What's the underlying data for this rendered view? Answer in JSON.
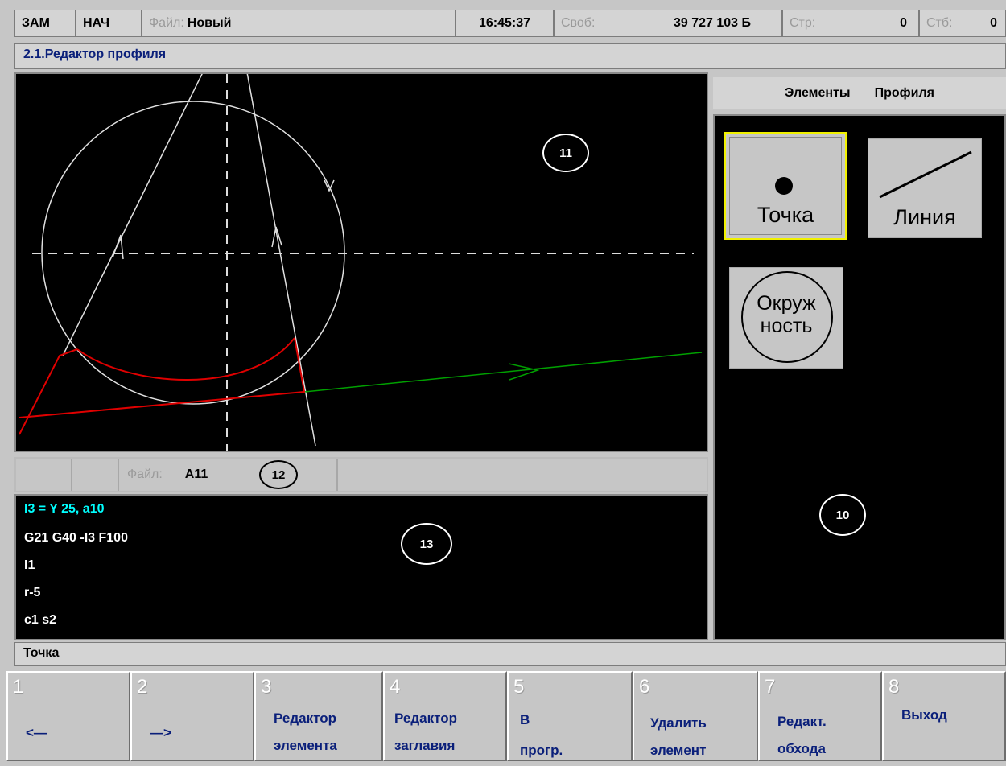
{
  "status_bar": {
    "mode1": "ЗАМ",
    "mode2": "НАЧ",
    "file_label": "Файл:",
    "file_name": "Новый",
    "time": "16:45:37",
    "free_label": "Своб:",
    "free_value": "39 727 103 Б",
    "row_label": "Стр:",
    "row_value": "0",
    "col_label": "Стб:",
    "col_value": "0"
  },
  "window_title": "2.1.Редактор профиля",
  "elements_panel": {
    "header_word1": "Элементы",
    "header_word2": "Профиля",
    "tiles": {
      "point": "Точка",
      "line": "Линия",
      "circle_line1": "Окруж",
      "circle_line2": "ность"
    },
    "callout": "10"
  },
  "graph_callout": "11",
  "file_bar": {
    "label": "Файл:",
    "name": "A11",
    "callout": "12"
  },
  "code": {
    "lines": [
      "I3 = Y 25, a10",
      "G21 G40 -I3 F100",
      "I1",
      "r-5",
      "c1 s2"
    ],
    "callout": "13",
    "highlight_color": "#00ffff"
  },
  "status_line": "Точка",
  "fkeys": [
    {
      "num": "1",
      "line1": "<—",
      "line2": ""
    },
    {
      "num": "2",
      "line1": "—>",
      "line2": ""
    },
    {
      "num": "3",
      "line1": "Редактор",
      "line2": "элемента"
    },
    {
      "num": "4",
      "line1": "Редактор",
      "line2": "заглавия"
    },
    {
      "num": "5",
      "line1": "В",
      "line2": "прогр."
    },
    {
      "num": "6",
      "line1": "Удалить",
      "line2": "элемент"
    },
    {
      "num": "7",
      "line1": "Редакт.",
      "line2": "обхода"
    },
    {
      "num": "8",
      "line1": "Выход",
      "line2": ""
    }
  ]
}
